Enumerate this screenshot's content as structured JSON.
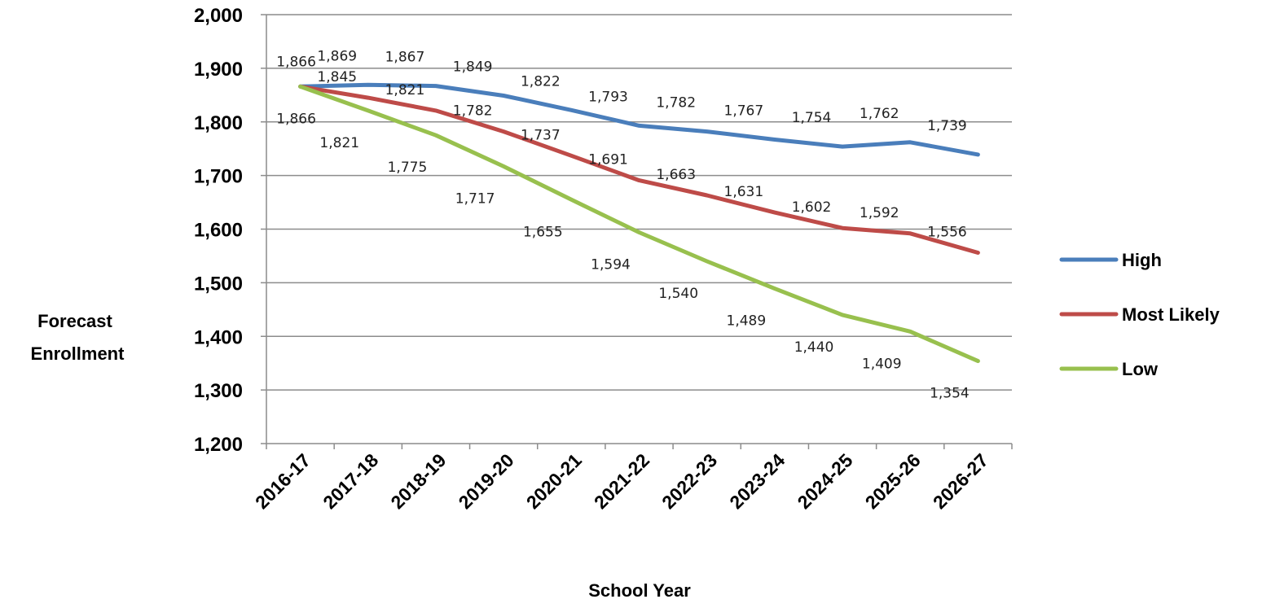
{
  "chart_data": {
    "type": "line",
    "categories": [
      "2016-17",
      "2017-18",
      "2018-19",
      "2019-20",
      "2020-21",
      "2021-22",
      "2022-23",
      "2023-24",
      "2024-25",
      "2025-26",
      "2026-27"
    ],
    "series": [
      {
        "name": "High",
        "color": "#4a7ebb",
        "values": [
          1866,
          1869,
          1867,
          1849,
          1822,
          1793,
          1782,
          1767,
          1754,
          1762,
          1739
        ],
        "labels": [
          "1,866",
          "1,869",
          "1,867",
          "1,849",
          "1,822",
          "1,793",
          "1,782",
          "1,767",
          "1,754",
          "1,762",
          "1,739"
        ]
      },
      {
        "name": "Most Likely",
        "color": "#be4b48",
        "values": [
          1866,
          1845,
          1821,
          1782,
          1737,
          1691,
          1663,
          1631,
          1602,
          1592,
          1556
        ],
        "labels": [
          "1,866",
          "1,845",
          "1,821",
          "1,782",
          "1,737",
          "1,691",
          "1,663",
          "1,631",
          "1,602",
          "1,592",
          "1,556"
        ]
      },
      {
        "name": "Low",
        "color": "#98c04e",
        "values": [
          1866,
          1821,
          1775,
          1717,
          1655,
          1594,
          1540,
          1489,
          1440,
          1409,
          1354
        ],
        "labels": [
          "1,866",
          "1,821",
          "1,775",
          "1,717",
          "1,655",
          "1,594",
          "1,540",
          "1,489",
          "1,440",
          "1,409",
          "1,354"
        ]
      }
    ],
    "y_ticks": [
      "1,200",
      "1,300",
      "1,400",
      "1,500",
      "1,600",
      "1,700",
      "1,800",
      "1,900",
      "2,000"
    ],
    "ylim": [
      1200,
      2000
    ],
    "ylabel_lines": [
      "Forecast",
      "Enrollment"
    ],
    "xlabel": "School Year",
    "grid": true,
    "legend_position": "right"
  }
}
